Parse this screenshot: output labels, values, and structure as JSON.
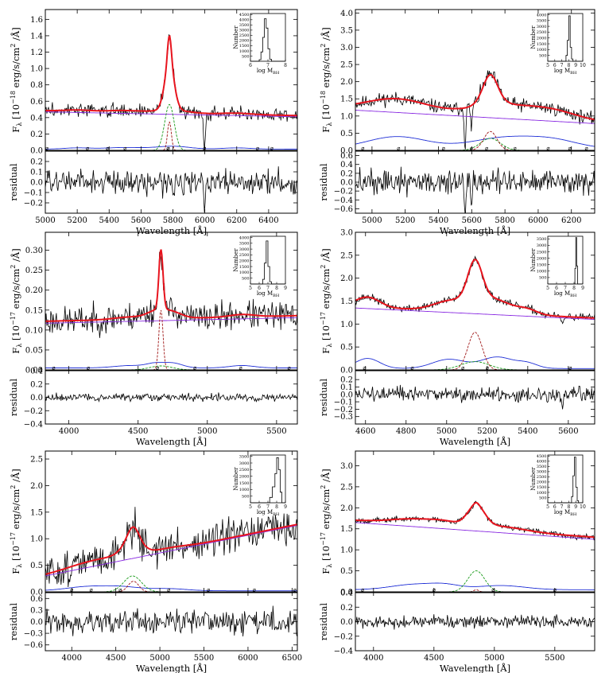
{
  "figure": {
    "type": "multi-panel spectral fit",
    "panels": 6
  },
  "colors": {
    "data": "#000000",
    "model": "#e8141e",
    "continuum": "#8a2be2",
    "iron": "#1f2fd6",
    "broad": "#1a9b1a",
    "narrow": "#a01818"
  },
  "common": {
    "xlabel": "Wavelength [Å]",
    "ylabel_resid": "residual",
    "inset_ylabel": "Number",
    "inset_xlabel": "log M",
    "inset_xlabel_sub": "BH",
    "ylabel_prefix": "F",
    "ylabel_sub": "λ",
    "ylabel_mid": " erg/s/cm",
    "ylabel_suffix": " /Å]",
    "ylabel_sq": "2"
  },
  "chart_data": [
    {
      "type": "line",
      "ylabel_unit": "[10",
      "ylabel_exp": "−18",
      "xlim": [
        5000,
        6580
      ],
      "xticks": [
        5000,
        5200,
        5400,
        5600,
        5800,
        6000,
        6200,
        6400
      ],
      "ylim": [
        0,
        1.72
      ],
      "yticks": [
        "0.0",
        "0.2",
        "0.4",
        "0.6",
        "0.8",
        "1.0",
        "1.2",
        "1.4",
        "1.6"
      ],
      "yvals": [
        0,
        0.2,
        0.4,
        0.6,
        0.8,
        1.0,
        1.2,
        1.4,
        1.6
      ],
      "rlim": [
        -0.3,
        0.3
      ],
      "rticks": [
        "−0.2",
        "−0.1",
        "0.0",
        "0.1",
        "0.2"
      ],
      "rvals": [
        -0.2,
        -0.1,
        0,
        0.1,
        0.2
      ],
      "continuum": [
        [
          5000,
          0.47
        ],
        [
          6580,
          0.41
        ]
      ],
      "iron": {
        "base": 0.015,
        "bumps": [
          [
            5200,
            0.015,
            80
          ],
          [
            5500,
            0.02,
            120
          ],
          [
            5800,
            0.035,
            100
          ],
          [
            6200,
            0.015,
            90
          ]
        ]
      },
      "broad": {
        "center": 5778,
        "amp": 0.56,
        "sigma": 30
      },
      "narrow": {
        "center": 5778,
        "amp": 0.35,
        "sigma": 12
      },
      "noise": 0.05,
      "rnoise": 0.08,
      "seed": 3,
      "features": [
        [
          5998,
          -0.42
        ]
      ],
      "marks": [
        5010,
        5265,
        5390,
        5500,
        5770,
        5770,
        5998,
        6330,
        6420
      ],
      "inset": {
        "xlim": [
          6,
          8
        ],
        "xticks": [
          6,
          7,
          8
        ],
        "ylim": [
          0,
          4600
        ],
        "yticks": [
          500,
          1000,
          1500,
          2000,
          2500,
          3000,
          3500,
          4000,
          4500
        ],
        "hist": [
          [
            6.0,
            6.5,
            0
          ],
          [
            6.5,
            6.6,
            150
          ],
          [
            6.6,
            6.7,
            900
          ],
          [
            6.7,
            6.8,
            2300
          ],
          [
            6.8,
            6.9,
            4100
          ],
          [
            6.9,
            7.0,
            3200
          ],
          [
            7.0,
            7.1,
            1200
          ],
          [
            7.1,
            7.2,
            200
          ],
          [
            7.2,
            8.0,
            0
          ]
        ]
      }
    },
    {
      "type": "line",
      "ylabel_unit": "[10",
      "ylabel_exp": "−18",
      "xlim": [
        4900,
        6340
      ],
      "xticks": [
        5000,
        5200,
        5400,
        5600,
        5800,
        6000,
        6200
      ],
      "ylim": [
        0,
        4.1
      ],
      "yticks": [
        "0.0",
        "0.5",
        "1.0",
        "1.5",
        "2.0",
        "2.5",
        "3.0",
        "3.5",
        "4.0"
      ],
      "yvals": [
        0,
        0.5,
        1.0,
        1.5,
        2.0,
        2.5,
        3.0,
        3.5,
        4.0
      ],
      "rlim": [
        -0.7,
        0.7
      ],
      "rticks": [
        "−0.6",
        "−0.4",
        "−0.2",
        "0.0",
        "0.2",
        "0.4",
        "0.6"
      ],
      "rvals": [
        -0.6,
        -0.4,
        -0.2,
        0,
        0.2,
        0.4,
        0.6
      ],
      "continuum": [
        [
          4900,
          1.17
        ],
        [
          6340,
          0.78
        ]
      ],
      "iron": {
        "base": 0.05,
        "bumps": [
          [
            5150,
            0.35,
            180
          ],
          [
            5800,
            0.32,
            200
          ],
          [
            6100,
            0.2,
            150
          ]
        ]
      },
      "broad": {
        "center": 5712,
        "amp": 0.35,
        "sigma": 60
      },
      "narrow": {
        "center": 5712,
        "amp": 0.55,
        "sigma": 40
      },
      "noise": 0.12,
      "rnoise": 0.2,
      "seed": 11,
      "features": [
        [
          5560,
          -1.1
        ],
        [
          5598,
          -0.7
        ]
      ],
      "marks": [
        4945,
        5160,
        5430,
        5598,
        5690,
        5860,
        6060,
        6190,
        6290
      ],
      "inset": {
        "xlim": [
          5,
          10
        ],
        "xticks": [
          5,
          6,
          7,
          8,
          9,
          10
        ],
        "ylim": [
          0,
          4100
        ],
        "yticks": [
          500,
          1000,
          1500,
          2000,
          2500,
          3000,
          3500,
          4000
        ],
        "hist": [
          [
            5.0,
            7.6,
            0
          ],
          [
            7.6,
            7.8,
            500
          ],
          [
            7.8,
            8.0,
            1800
          ],
          [
            8.0,
            8.2,
            3900
          ],
          [
            8.2,
            8.4,
            1200
          ],
          [
            8.4,
            8.6,
            200
          ],
          [
            8.6,
            10,
            0
          ]
        ]
      }
    },
    {
      "type": "line",
      "ylabel_unit": "[10",
      "ylabel_exp": "−17",
      "xlim": [
        3830,
        5650
      ],
      "xticks": [
        4000,
        4500,
        5000,
        5500
      ],
      "ylim": [
        0,
        0.345
      ],
      "yticks": [
        "0.00",
        "0.05",
        "0.10",
        "0.15",
        "0.20",
        "0.25",
        "0.30"
      ],
      "yvals": [
        0,
        0.05,
        0.1,
        0.15,
        0.2,
        0.25,
        0.3
      ],
      "rlim": [
        -0.4,
        0.4
      ],
      "rticks": [
        "−0.4",
        "−0.2",
        "0.0",
        "0.2",
        "0.4"
      ],
      "rvals": [
        -0.4,
        -0.2,
        0,
        0.2,
        0.4
      ],
      "continuum": [
        [
          3830,
          0.117
        ],
        [
          5650,
          0.131
        ]
      ],
      "iron": {
        "base": 0.005,
        "bumps": [
          [
            4450,
            0.006,
            120
          ],
          [
            4620,
            0.009,
            60
          ],
          [
            4750,
            0.012,
            70
          ],
          [
            5250,
            0.006,
            90
          ]
        ]
      },
      "broad": {
        "center": 4665,
        "amp": 0.01,
        "sigma": 80
      },
      "narrow": {
        "center": 4665,
        "amp": 0.15,
        "sigma": 15
      },
      "noise": 0.022,
      "rnoise": 0.04,
      "seed": 23,
      "features": [],
      "marks": [
        3890,
        4140,
        4640,
        4910,
        5240,
        5590
      ],
      "inset": {
        "xlim": [
          5,
          9
        ],
        "xticks": [
          5,
          6,
          7,
          8,
          9
        ],
        "ylim": [
          0,
          4100
        ],
        "yticks": [
          500,
          1000,
          1500,
          2000,
          2500,
          3000,
          3500,
          4000
        ],
        "hist": [
          [
            5.0,
            6.4,
            0
          ],
          [
            6.4,
            6.6,
            400
          ],
          [
            6.6,
            6.8,
            1800
          ],
          [
            6.8,
            7.0,
            3700
          ],
          [
            7.0,
            7.2,
            1500
          ],
          [
            7.2,
            7.4,
            200
          ],
          [
            7.4,
            9,
            0
          ]
        ]
      }
    },
    {
      "type": "line",
      "ylabel_unit": "[10",
      "ylabel_exp": "−17",
      "xlim": [
        4550,
        5730
      ],
      "xticks": [
        4600,
        4800,
        5000,
        5200,
        5400,
        5600
      ],
      "ylim": [
        0,
        3.0
      ],
      "yticks": [
        "0.0",
        "0.5",
        "1.0",
        "1.5",
        "2.0",
        "2.5",
        "3.0"
      ],
      "yvals": [
        0,
        0.5,
        1.0,
        1.5,
        2.0,
        2.5,
        3.0
      ],
      "rlim": [
        -0.4,
        0.32
      ],
      "rticks": [
        "−0.3",
        "−0.2",
        "−0.1",
        "0.0",
        "0.1",
        "0.2"
      ],
      "rvals": [
        -0.3,
        -0.2,
        -0.1,
        0,
        0.1,
        0.2
      ],
      "continuum": [
        [
          4550,
          1.35
        ],
        [
          5730,
          1.1
        ]
      ],
      "iron": {
        "base": 0.03,
        "bumps": [
          [
            4610,
            0.22,
            60
          ],
          [
            5010,
            0.2,
            80
          ],
          [
            5250,
            0.25,
            80
          ],
          [
            5400,
            0.1,
            50
          ]
        ]
      },
      "broad": {
        "center": 5140,
        "amp": 0.18,
        "sigma": 70
      },
      "narrow": {
        "center": 5140,
        "amp": 0.82,
        "sigma": 35
      },
      "noise": 0.05,
      "rnoise": 0.07,
      "seed": 37,
      "features": [
        [
          5570,
          -0.2
        ]
      ],
      "marks": [
        4595,
        4830,
        5080,
        5200,
        5610
      ],
      "inset": {
        "xlim": [
          5,
          9
        ],
        "xticks": [
          5,
          6,
          7,
          8,
          9
        ],
        "ylim": [
          0,
          3700
        ],
        "yticks": [
          500,
          1000,
          1500,
          2000,
          2500,
          3000,
          3500
        ],
        "hist": [
          [
            5.0,
            8.1,
            0
          ],
          [
            8.1,
            8.2,
            1200
          ],
          [
            8.2,
            8.3,
            3600
          ],
          [
            8.3,
            8.4,
            1400
          ],
          [
            8.4,
            9,
            0
          ]
        ]
      }
    },
    {
      "type": "line",
      "ylabel_unit": "[10",
      "ylabel_exp": "−17",
      "xlim": [
        3700,
        6560
      ],
      "xticks": [
        4000,
        4500,
        5000,
        5500,
        6000,
        6500
      ],
      "ylim": [
        0,
        2.65
      ],
      "yticks": [
        "0.0",
        "0.5",
        "1.0",
        "1.5",
        "2.0",
        "2.5"
      ],
      "yvals": [
        0,
        0.5,
        1.0,
        1.5,
        2.0,
        2.5
      ],
      "rlim": [
        -0.75,
        0.75
      ],
      "rticks": [
        "−0.6",
        "−0.3",
        "0.0",
        "0.3",
        "0.6"
      ],
      "rvals": [
        -0.6,
        -0.3,
        0,
        0.3,
        0.6
      ],
      "continuum": [
        [
          3700,
          0.3
        ],
        [
          6560,
          1.25
        ]
      ],
      "iron": {
        "base": 0.02,
        "bumps": [
          [
            4200,
            0.08,
            250
          ],
          [
            4600,
            0.06,
            200
          ],
          [
            5100,
            0.04,
            200
          ]
        ]
      },
      "broad": {
        "center": 4690,
        "amp": 0.3,
        "sigma": 100
      },
      "narrow": {
        "center": 4700,
        "amp": 0.2,
        "sigma": 60
      },
      "noise": 0.2,
      "rnoise": 0.22,
      "seed": 51,
      "features": [],
      "marks": [
        4000,
        4220,
        4550,
        5100,
        5550,
        6070,
        6530
      ],
      "inset": {
        "xlim": [
          5,
          9
        ],
        "xticks": [
          5,
          6,
          7,
          8,
          9
        ],
        "ylim": [
          0,
          3600
        ],
        "yticks": [
          500,
          1000,
          1500,
          2000,
          2500,
          3000,
          3500
        ],
        "hist": [
          [
            5.0,
            7.2,
            0
          ],
          [
            7.2,
            7.5,
            400
          ],
          [
            7.5,
            7.8,
            1200
          ],
          [
            7.8,
            8.0,
            2200
          ],
          [
            8.0,
            8.2,
            3400
          ],
          [
            8.2,
            8.4,
            2500
          ],
          [
            8.4,
            8.6,
            800
          ],
          [
            8.6,
            9,
            0
          ]
        ]
      }
    },
    {
      "type": "line",
      "ylabel_unit": "[10",
      "ylabel_exp": "−17",
      "xlim": [
        3850,
        5830
      ],
      "xticks": [
        4000,
        4500,
        5000,
        5500
      ],
      "ylim": [
        0,
        3.35
      ],
      "yticks": [
        "0.0",
        "0.5",
        "1.0",
        "1.5",
        "2.0",
        "2.5",
        "3.0"
      ],
      "yvals": [
        0,
        0.5,
        1.0,
        1.5,
        2.0,
        2.5,
        3.0
      ],
      "rlim": [
        -0.4,
        0.4
      ],
      "rticks": [
        "−0.4",
        "−0.2",
        "0.0",
        "0.2",
        "0.4"
      ],
      "rvals": [
        -0.4,
        -0.2,
        0,
        0.2,
        0.4
      ],
      "continuum": [
        [
          3850,
          1.65
        ],
        [
          5830,
          1.25
        ]
      ],
      "iron": {
        "base": 0.05,
        "bumps": [
          [
            4350,
            0.13,
            200
          ],
          [
            4600,
            0.08,
            120
          ],
          [
            5050,
            0.1,
            200
          ]
        ]
      },
      "broad": {
        "center": 4850,
        "amp": 0.5,
        "sigma": 70
      },
      "narrow": {
        "center": 4850,
        "amp": 0.05,
        "sigma": 20
      },
      "noise": 0.04,
      "rnoise": 0.06,
      "seed": 67,
      "features": [],
      "marks": [
        3910,
        4500,
        4990,
        5500
      ],
      "inset": {
        "xlim": [
          5,
          10
        ],
        "xticks": [
          5,
          6,
          7,
          8,
          9,
          10
        ],
        "ylim": [
          0,
          4600
        ],
        "yticks": [
          500,
          1000,
          1500,
          2000,
          2500,
          3000,
          3500,
          4000,
          4500
        ],
        "hist": [
          [
            5.0,
            8.4,
            0
          ],
          [
            8.4,
            8.6,
            600
          ],
          [
            8.6,
            8.8,
            2600
          ],
          [
            8.8,
            9.0,
            4400
          ],
          [
            9.0,
            9.2,
            1500
          ],
          [
            9.2,
            9.4,
            200
          ],
          [
            9.4,
            10,
            0
          ]
        ]
      }
    }
  ]
}
